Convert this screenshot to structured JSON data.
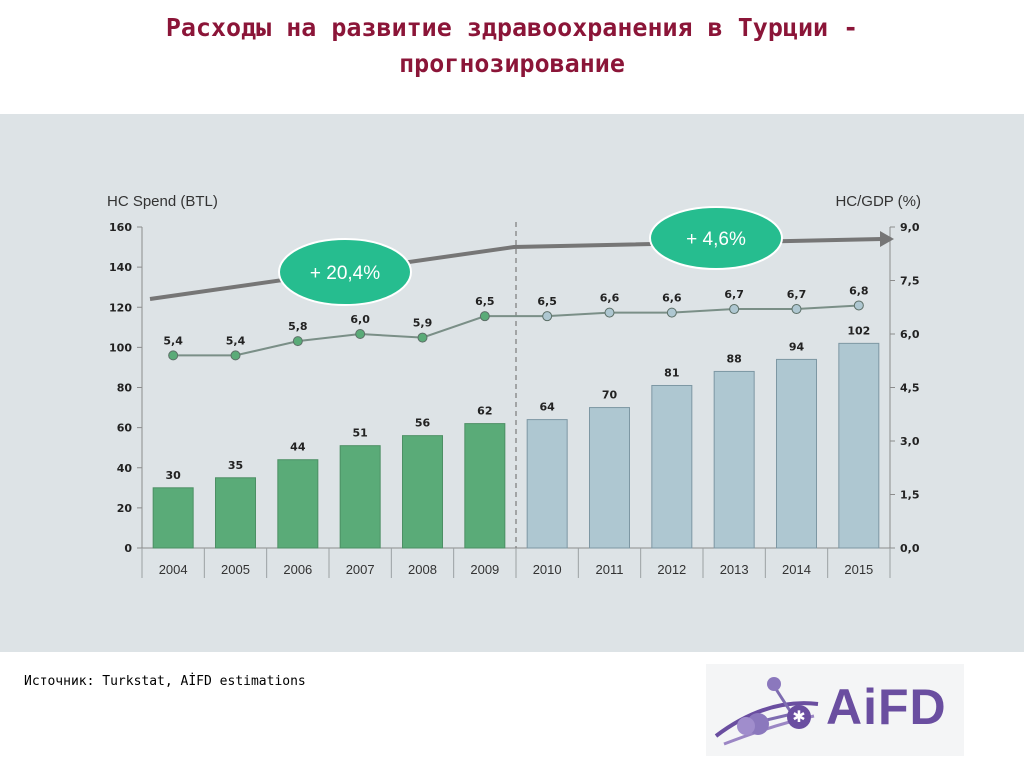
{
  "slide": {
    "title_line1": "Расходы на развитие здравоохранения в Турции -",
    "title_line2": "прогнозирование",
    "source": "Источник: Turkstat, AİFD estimations",
    "logo_text": "AiFD"
  },
  "chart_data": {
    "type": "bar",
    "categories": [
      "2004",
      "2005",
      "2006",
      "2007",
      "2008",
      "2009",
      "2010",
      "2011",
      "2012",
      "2013",
      "2014",
      "2015"
    ],
    "left_axis_title": "HC Spend (BTL)",
    "right_axis_title": "HC/GDP (%)",
    "ylim": [
      0,
      160
    ],
    "yticks": [
      "0",
      "20",
      "40",
      "60",
      "80",
      "100",
      "120",
      "140",
      "160"
    ],
    "y2lim": [
      0,
      9
    ],
    "y2ticks": [
      "0,0",
      "1,5",
      "3,0",
      "4,5",
      "6,0",
      "7,5",
      "9,0"
    ],
    "series": [
      {
        "values": [
          30,
          35,
          44,
          51,
          56,
          62,
          64,
          70,
          81,
          88,
          94,
          102
        ],
        "labels": [
          "30",
          "35",
          "44",
          "51",
          "56",
          "62",
          "64",
          "70",
          "81",
          "88",
          "94",
          "102"
        ]
      },
      {
        "type": "line",
        "axis": "right",
        "values": [
          5.4,
          5.4,
          5.8,
          6.0,
          5.9,
          6.5,
          6.5,
          6.6,
          6.6,
          6.7,
          6.7,
          6.8
        ],
        "labels": [
          "5,4",
          "5,4",
          "5,8",
          "6,0",
          "5,9",
          "6,5",
          "6,5",
          "6,6",
          "6,6",
          "6,7",
          "6,7",
          "6,8"
        ]
      }
    ],
    "historical_count": 6,
    "colors": {
      "historical": "#5aab78",
      "forecast": "#aec7d1",
      "line": "#7a8f87",
      "trend_arrow": "#767676",
      "badge": "#26bd8f"
    },
    "annotations": [
      {
        "text": "+ 20,4%"
      },
      {
        "text": "+ 4,6%"
      }
    ]
  }
}
